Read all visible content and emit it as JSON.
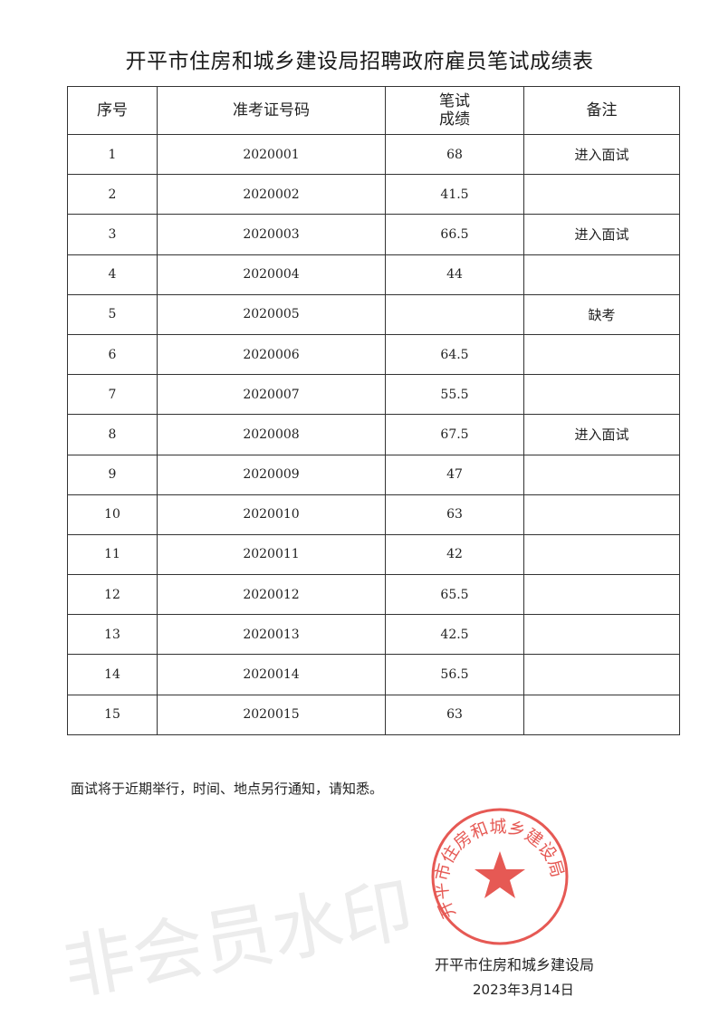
{
  "title": "开平市住房和城乡建设局招聘政府雇员笔试成绩表",
  "table": {
    "headers": [
      "序号",
      "准考证号码",
      "笔试\n成绩",
      "备注"
    ],
    "rows": [
      [
        "1",
        "2020001",
        "68",
        "进入面试"
      ],
      [
        "2",
        "2020002",
        "41.5",
        ""
      ],
      [
        "3",
        "2020003",
        "66.5",
        "进入面试"
      ],
      [
        "4",
        "2020004",
        "44",
        ""
      ],
      [
        "5",
        "2020005",
        "",
        "缺考"
      ],
      [
        "6",
        "2020006",
        "64.5",
        ""
      ],
      [
        "7",
        "2020007",
        "55.5",
        ""
      ],
      [
        "8",
        "2020008",
        "67.5",
        "进入面试"
      ],
      [
        "9",
        "2020009",
        "47",
        ""
      ],
      [
        "10",
        "2020010",
        "63",
        ""
      ],
      [
        "11",
        "2020011",
        "42",
        ""
      ],
      [
        "12",
        "2020012",
        "65.5",
        ""
      ],
      [
        "13",
        "2020013",
        "42.5",
        ""
      ],
      [
        "14",
        "2020014",
        "56.5",
        ""
      ],
      [
        "15",
        "2020015",
        "63",
        ""
      ]
    ]
  },
  "notice": "面试将于近期举行，时间、地点另行通知，请知悉。",
  "signature": "开平市住房和城乡建设局",
  "date": "2023年3月14日",
  "watermark": "非会员水印",
  "stamp": {
    "text": "开平市住房和城乡建设局",
    "color": "#e0302a"
  }
}
